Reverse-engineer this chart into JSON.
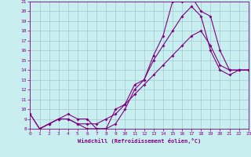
{
  "xlabel": "Windchill (Refroidissement éolien,°C)",
  "ylabel": "",
  "bg_color": "#c8eef0",
  "line_color": "#800080",
  "grid_color": "#a0c8d0",
  "xmin": 0,
  "xmax": 23,
  "ymin": 8,
  "ymax": 21,
  "line1_x": [
    0,
    1,
    2,
    3,
    4,
    5,
    6,
    7,
    8,
    9,
    10,
    11,
    12,
    13,
    14,
    15,
    16,
    17,
    18,
    19,
    20,
    21,
    22,
    23
  ],
  "line1_y": [
    9.5,
    8.0,
    8.5,
    9.0,
    9.0,
    8.5,
    8.0,
    8.0,
    8.0,
    8.5,
    10.0,
    12.0,
    13.0,
    15.0,
    16.5,
    18.0,
    19.5,
    20.5,
    19.5,
    16.0,
    14.0,
    13.5,
    14.0,
    14.0
  ],
  "line2_x": [
    1,
    2,
    3,
    4,
    5,
    6,
    7,
    8,
    9,
    10,
    11,
    12,
    13,
    14,
    15,
    16,
    17,
    18,
    19,
    20,
    21,
    22,
    23
  ],
  "line2_y": [
    8.0,
    8.5,
    9.0,
    9.5,
    9.0,
    9.0,
    8.0,
    8.0,
    10.0,
    10.5,
    12.5,
    13.0,
    15.5,
    17.5,
    21.0,
    21.0,
    21.5,
    20.0,
    19.5,
    16.0,
    14.0,
    14.0,
    14.0
  ],
  "line3_x": [
    0,
    1,
    2,
    3,
    4,
    5,
    6,
    7,
    8,
    9,
    10,
    11,
    12,
    13,
    14,
    15,
    16,
    17,
    18,
    19,
    20,
    21,
    22,
    23
  ],
  "line3_y": [
    9.5,
    8.0,
    8.5,
    9.0,
    9.0,
    8.5,
    8.5,
    8.5,
    9.0,
    9.5,
    10.5,
    11.5,
    12.5,
    13.5,
    14.5,
    15.5,
    16.5,
    17.5,
    18.0,
    16.5,
    14.5,
    14.0,
    14.0,
    14.0
  ]
}
